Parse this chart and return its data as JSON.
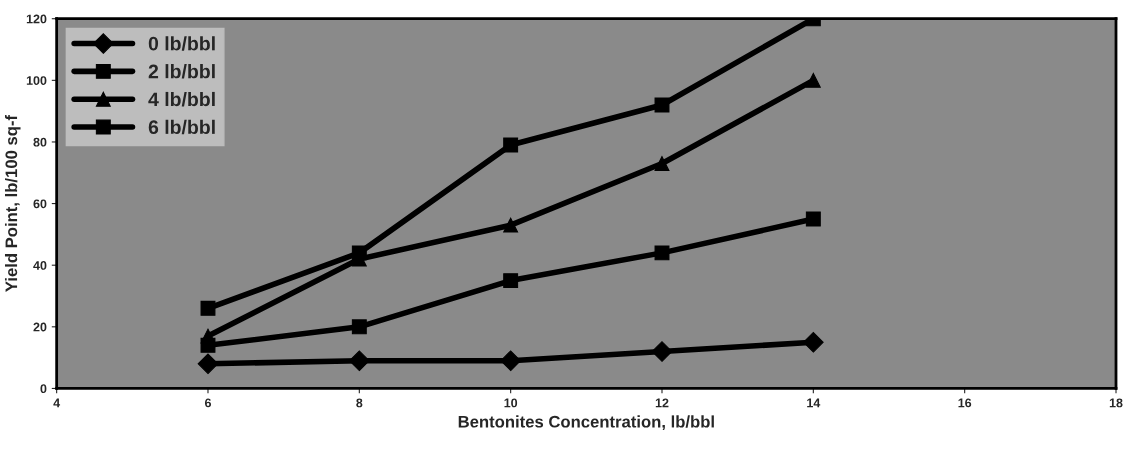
{
  "chart_data": {
    "type": "line",
    "xlabel": "Bentonites Concentration, lb/bbl",
    "ylabel": "Yield Point, lb/100 sq-f",
    "x": [
      6,
      8,
      10,
      12,
      14
    ],
    "series": [
      {
        "name": "0 lb/bbl",
        "color": "#000000",
        "marker": "diamond",
        "values": [
          8,
          9,
          9,
          12,
          15
        ]
      },
      {
        "name": "2 lb/bbl",
        "color": "#000000",
        "marker": "square",
        "values": [
          14,
          20,
          35,
          44,
          55
        ]
      },
      {
        "name": "4 lb/bbl",
        "color": "#000000",
        "marker": "triangle",
        "values": [
          17,
          42,
          53,
          73,
          100
        ]
      },
      {
        "name": "6 lb/bbl",
        "color": "#000000",
        "marker": "square",
        "values": [
          26,
          44,
          79,
          92,
          120
        ]
      }
    ],
    "xlim": [
      4,
      18
    ],
    "xticks": [
      4,
      6,
      8,
      10,
      12,
      14,
      16,
      18
    ],
    "ylim": [
      0,
      120
    ],
    "yticks": [
      0,
      20,
      40,
      60,
      80,
      100,
      120
    ],
    "grid": false,
    "legend": "top left",
    "line_style": "solid"
  }
}
